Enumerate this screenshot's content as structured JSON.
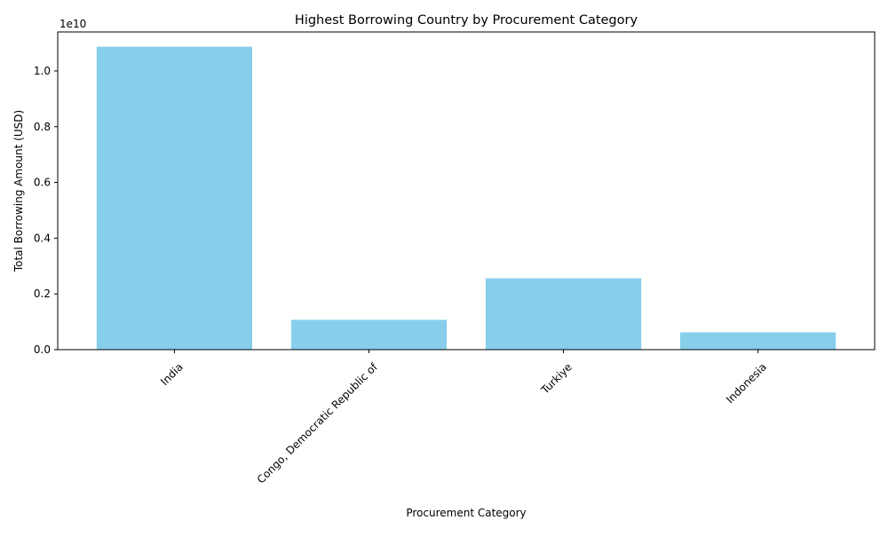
{
  "chart_data": {
    "type": "bar",
    "title": "Highest Borrowing Country by Procurement Category",
    "xlabel": "Procurement Category",
    "ylabel": "Total Borrowing Amount (USD)",
    "offset_label": "1e10",
    "categories": [
      "India",
      "Congo, Democratic Republic of",
      "Turkiye",
      "Indonesia"
    ],
    "values": [
      10870000000,
      1070000000,
      2560000000,
      620000000
    ],
    "ylim": [
      0,
      11400000000
    ],
    "yticks": [
      0,
      2000000000,
      4000000000,
      6000000000,
      8000000000,
      10000000000
    ],
    "ytick_labels": [
      "0.0",
      "0.2",
      "0.4",
      "0.6",
      "0.8",
      "1.0"
    ],
    "bar_color": "#87CEEB",
    "grid": false,
    "legend": "none"
  }
}
